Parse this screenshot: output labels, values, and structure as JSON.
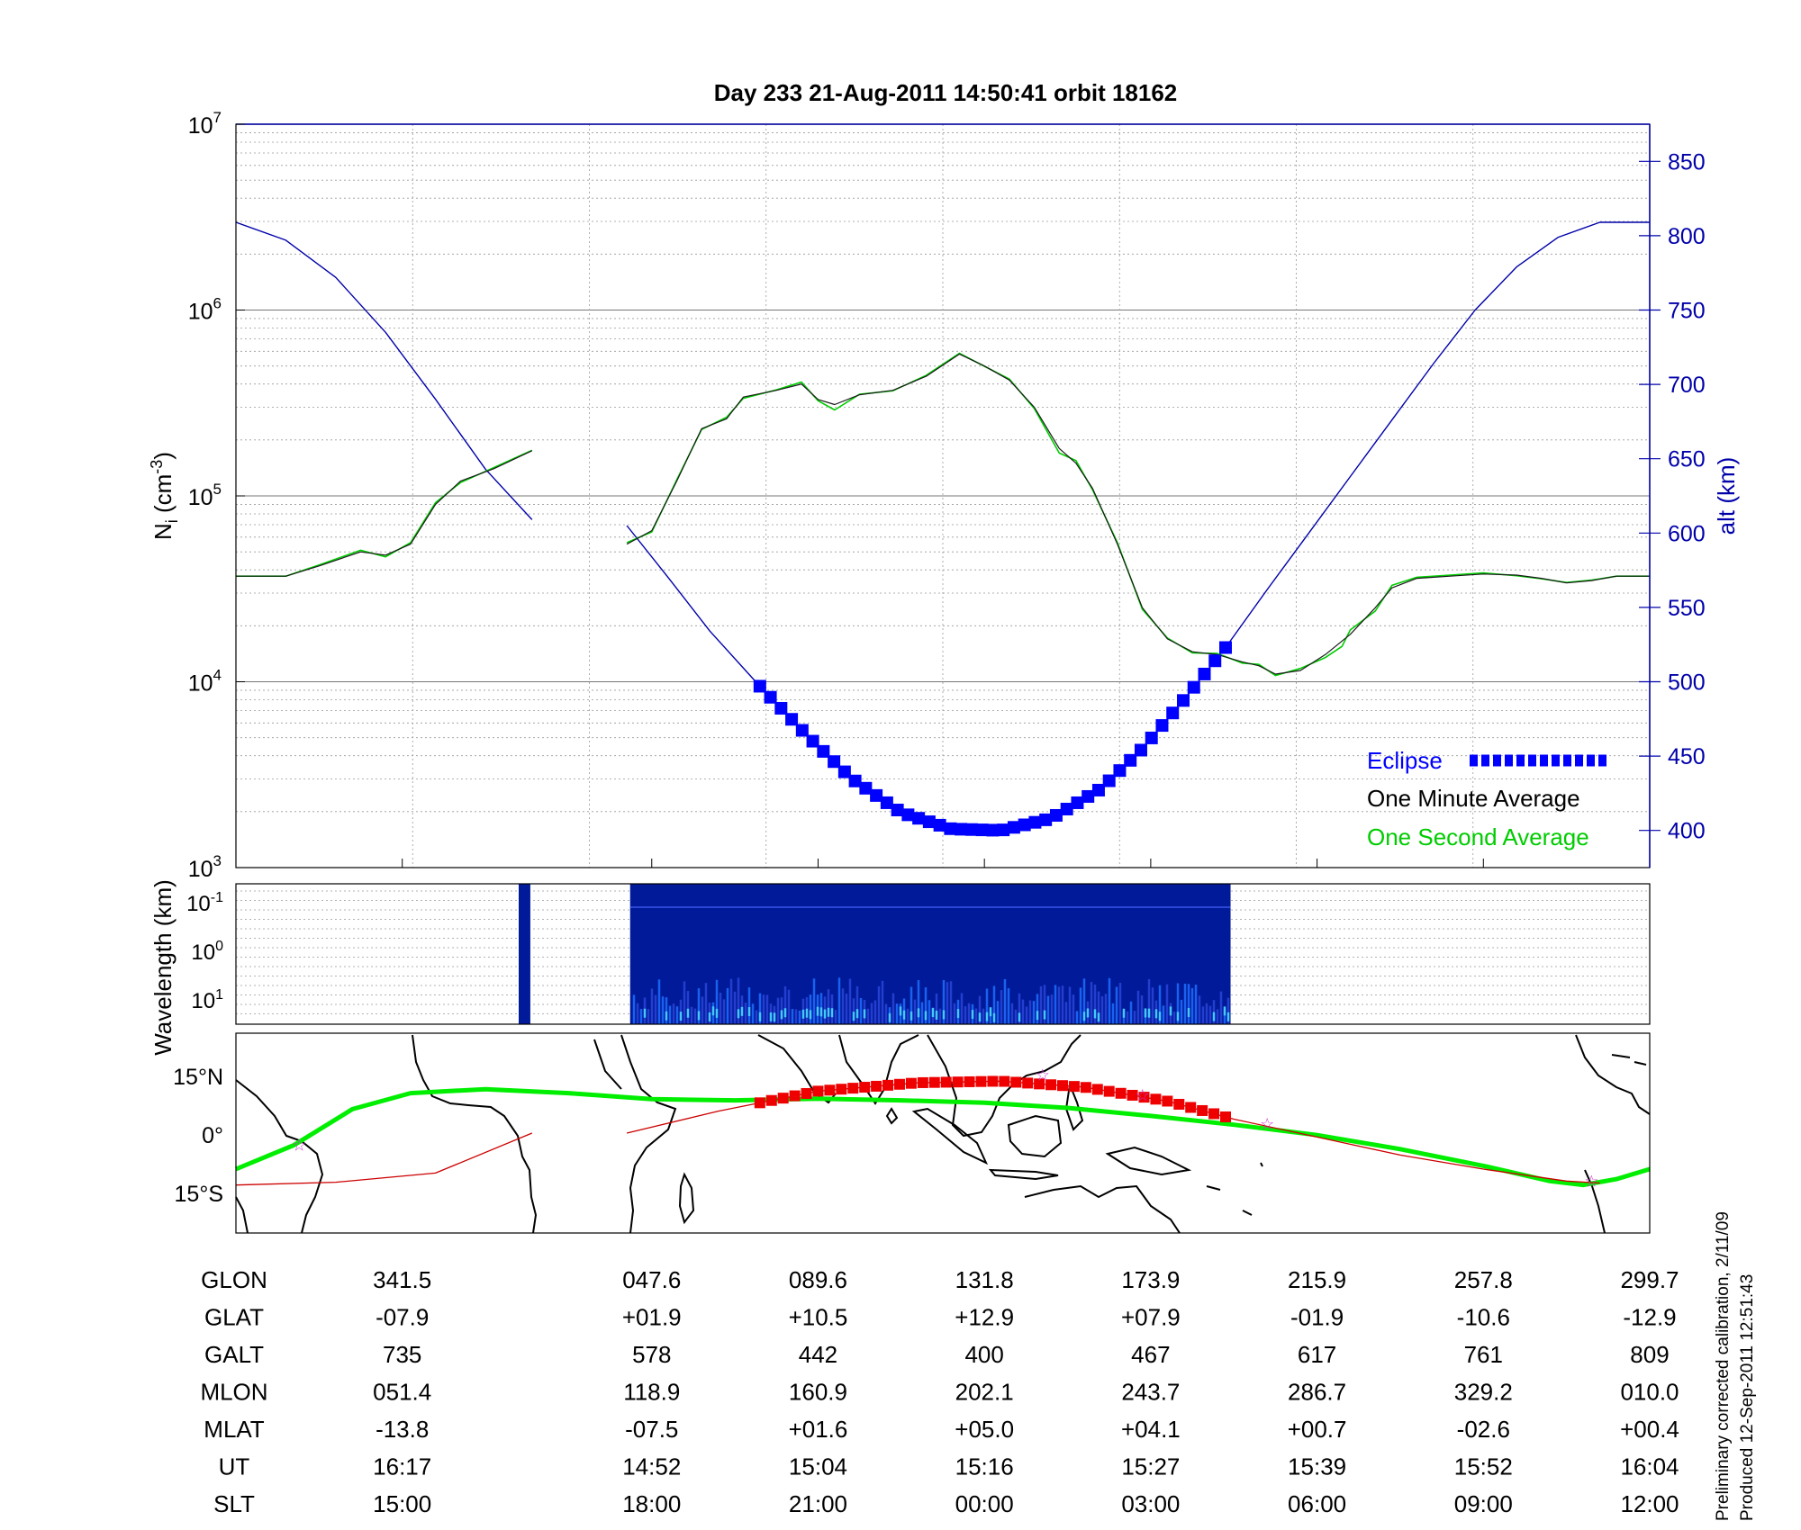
{
  "title": "Day 233  21-Aug-2011 14:50:41   orbit 18162",
  "colors": {
    "density_minute": "#1a1a1a",
    "density_second": "#00cc00",
    "altitude": "#0000aa",
    "eclipse": "#0000ff",
    "map_track": "#00ee00",
    "magnetic_track": "#cc0000",
    "map_eclipse": "#ee0000",
    "spectrogram_bg": "#001a99",
    "footnote": "#000000"
  },
  "chart_data": [
    {
      "type": "line",
      "panel": "density",
      "title": "Day 233  21-Aug-2011 14:50:41   orbit 18162",
      "ylabel": "N_i (cm^-3)",
      "ylabel_main": "N",
      "ylabel_sub": "i",
      "ylabel_rest": " (cm",
      "ylabel_sup": "-3",
      "ylabel_close": ")",
      "y_scale": "log",
      "ylim": [
        1000,
        10000000
      ],
      "y_ticks": [
        {
          "value": 1000,
          "base": "10",
          "exp": "3"
        },
        {
          "value": 10000,
          "base": "10",
          "exp": "4"
        },
        {
          "value": 100000,
          "base": "10",
          "exp": "5"
        },
        {
          "value": 1000000,
          "base": "10",
          "exp": "6"
        },
        {
          "value": 10000000,
          "base": "10",
          "exp": "7"
        }
      ],
      "y2label": "alt (km)",
      "y2lim": [
        375,
        875
      ],
      "y2_ticks": [
        "400",
        "450",
        "500",
        "550",
        "600",
        "650",
        "700",
        "750",
        "800",
        "850"
      ],
      "xlim": [
        0,
        8.5
      ],
      "x_unit": "track fraction",
      "grid": true,
      "legend_position": "bottom-right",
      "legend": [
        {
          "label": "Eclipse",
          "color": "#0000ff"
        },
        {
          "label": "One Minute Average",
          "color": "#000000"
        },
        {
          "label": "One Second Average",
          "color": "#00cc00"
        }
      ],
      "series": [
        {
          "name": "One Minute Average",
          "y_axis": "left",
          "segments": [
            [
              [
                0,
                37000
              ],
              [
                0.3,
                37000
              ],
              [
                0.5,
                42000
              ],
              [
                0.75,
                50000
              ],
              [
                0.9,
                48000
              ],
              [
                1.05,
                55000
              ],
              [
                1.2,
                90000
              ],
              [
                1.35,
                120000
              ],
              [
                1.55,
                140000
              ],
              [
                1.78,
                175000
              ]
            ],
            [
              [
                2.35,
                55000
              ],
              [
                2.5,
                65000
              ],
              [
                2.65,
                120000
              ],
              [
                2.8,
                230000
              ],
              [
                2.95,
                260000
              ],
              [
                3.05,
                340000
              ],
              [
                3.25,
                370000
              ],
              [
                3.4,
                400000
              ],
              [
                3.5,
                330000
              ],
              [
                3.6,
                310000
              ],
              [
                3.75,
                350000
              ],
              [
                3.95,
                370000
              ],
              [
                4.15,
                440000
              ],
              [
                4.35,
                580000
              ],
              [
                4.5,
                500000
              ],
              [
                4.65,
                420000
              ],
              [
                4.8,
                300000
              ],
              [
                4.95,
                180000
              ],
              [
                5.05,
                150000
              ],
              [
                5.15,
                110000
              ],
              [
                5.3,
                55000
              ],
              [
                5.45,
                25000
              ],
              [
                5.6,
                17000
              ],
              [
                5.75,
                14500
              ],
              [
                5.9,
                14000
              ],
              [
                6.05,
                12800
              ],
              [
                6.15,
                12200
              ],
              [
                6.25,
                11000
              ],
              [
                6.4,
                11500
              ],
              [
                6.55,
                14000
              ],
              [
                6.7,
                18000
              ],
              [
                6.85,
                25000
              ],
              [
                6.95,
                32000
              ],
              [
                7.1,
                36000
              ],
              [
                7.3,
                37000
              ],
              [
                7.5,
                38000
              ],
              [
                7.7,
                37500
              ],
              [
                7.85,
                36000
              ],
              [
                8.0,
                34000
              ],
              [
                8.15,
                35000
              ],
              [
                8.3,
                37000
              ],
              [
                8.5,
                37000
              ]
            ]
          ]
        },
        {
          "name": "One Second Average",
          "y_axis": "left",
          "segments": [
            [
              [
                0,
                37000
              ],
              [
                0.3,
                37000
              ],
              [
                0.5,
                42500
              ],
              [
                0.75,
                51000
              ],
              [
                0.9,
                47000
              ],
              [
                1.05,
                56000
              ],
              [
                1.2,
                92000
              ],
              [
                1.35,
                118000
              ],
              [
                1.55,
                142000
              ],
              [
                1.78,
                176000
              ]
            ],
            [
              [
                2.35,
                56000
              ],
              [
                2.5,
                64000
              ],
              [
                2.65,
                122000
              ],
              [
                2.8,
                228000
              ],
              [
                2.95,
                265000
              ],
              [
                3.05,
                335000
              ],
              [
                3.25,
                372000
              ],
              [
                3.4,
                410000
              ],
              [
                3.5,
                325000
              ],
              [
                3.6,
                290000
              ],
              [
                3.75,
                352000
              ],
              [
                3.95,
                368000
              ],
              [
                4.15,
                445000
              ],
              [
                4.35,
                585000
              ],
              [
                4.5,
                498000
              ],
              [
                4.65,
                425000
              ],
              [
                4.8,
                295000
              ],
              [
                4.95,
                170000
              ],
              [
                5.05,
                155000
              ],
              [
                5.15,
                108000
              ],
              [
                5.3,
                56000
              ],
              [
                5.45,
                24500
              ],
              [
                5.6,
                17200
              ],
              [
                5.75,
                14300
              ],
              [
                5.9,
                14200
              ],
              [
                6.05,
                12600
              ],
              [
                6.15,
                12400
              ],
              [
                6.25,
                10800
              ],
              [
                6.4,
                11800
              ],
              [
                6.55,
                13500
              ],
              [
                6.65,
                15500
              ],
              [
                6.7,
                19000
              ],
              [
                6.85,
                24000
              ],
              [
                6.95,
                33000
              ],
              [
                7.1,
                36500
              ],
              [
                7.3,
                37500
              ],
              [
                7.5,
                38500
              ],
              [
                7.7,
                37200
              ],
              [
                7.85,
                35800
              ],
              [
                8.0,
                34200
              ],
              [
                8.15,
                35200
              ],
              [
                8.3,
                37000
              ],
              [
                8.5,
                37000
              ]
            ]
          ]
        },
        {
          "name": "alt (km)",
          "y_axis": "right",
          "segments": [
            [
              [
                0,
                809
              ],
              [
                0.3,
                797
              ],
              [
                0.6,
                772
              ],
              [
                0.9,
                735
              ],
              [
                1.2,
                690
              ],
              [
                1.5,
                643
              ],
              [
                1.78,
                609
              ]
            ],
            [
              [
                2.35,
                605
              ],
              [
                2.6,
                570
              ],
              [
                2.85,
                534
              ],
              [
                3.15,
                497
              ],
              [
                3.45,
                462
              ],
              [
                3.7,
                435
              ],
              [
                4.0,
                412
              ],
              [
                4.3,
                401
              ],
              [
                4.6,
                400
              ],
              [
                4.9,
                408
              ],
              [
                5.2,
                428
              ],
              [
                5.45,
                455
              ],
              [
                5.7,
                488
              ],
              [
                5.95,
                523
              ],
              [
                6.2,
                562
              ],
              [
                6.45,
                600
              ],
              [
                6.7,
                638
              ],
              [
                6.95,
                676
              ],
              [
                7.2,
                714
              ],
              [
                7.45,
                750
              ],
              [
                7.7,
                779
              ],
              [
                7.95,
                799
              ],
              [
                8.2,
                809
              ],
              [
                8.5,
                809
              ]
            ]
          ]
        }
      ],
      "eclipse": {
        "x_start": 3.15,
        "x_end": 5.95
      }
    },
    {
      "type": "heatmap",
      "panel": "spectrogram",
      "ylabel": "Wavelength (km)",
      "y_ticks": [
        {
          "base": "10",
          "exp": "-1"
        },
        {
          "base": "10",
          "exp": "0"
        },
        {
          "base": "10",
          "exp": "1"
        }
      ],
      "xlim": [
        0,
        8.5
      ],
      "data_spans": [
        [
          1.7,
          1.77
        ],
        [
          2.37,
          5.98
        ]
      ]
    },
    {
      "type": "line",
      "panel": "map",
      "y_ticks": [
        "15°N",
        "0°",
        "15°S"
      ],
      "xlim": [
        0,
        8.5
      ],
      "ylim": [
        -25,
        25
      ],
      "series": [
        {
          "name": "geographic",
          "points": [
            [
              0,
              -9
            ],
            [
              0.35,
              -3
            ],
            [
              0.7,
              6
            ],
            [
              1.05,
              10
            ],
            [
              1.5,
              11
            ],
            [
              2.0,
              10
            ],
            [
              2.5,
              8.5
            ],
            [
              3.0,
              8.2
            ],
            [
              3.5,
              8.6
            ],
            [
              4.0,
              8.2
            ],
            [
              4.5,
              7.6
            ],
            [
              5.0,
              6.3
            ],
            [
              5.5,
              4.3
            ],
            [
              6.0,
              2.1
            ],
            [
              6.5,
              -0.5
            ],
            [
              7.0,
              -4
            ],
            [
              7.5,
              -8.2
            ],
            [
              7.9,
              -12
            ],
            [
              8.1,
              -13
            ],
            [
              8.3,
              -11.5
            ],
            [
              8.5,
              -9
            ]
          ]
        },
        {
          "name": "magnetic",
          "points": [
            [
              0,
              -13
            ],
            [
              0.6,
              -12.3
            ],
            [
              1.2,
              -10
            ],
            [
              1.78,
              0
            ]
          ]
        },
        {
          "name": "magnetic",
          "points": [
            [
              2.35,
              0
            ],
            [
              2.9,
              5.5
            ],
            [
              3.5,
              10.5
            ],
            [
              4.1,
              12.6
            ],
            [
              4.6,
              13
            ],
            [
              5.1,
              11.5
            ],
            [
              5.6,
              8
            ],
            [
              6.0,
              3.5
            ],
            [
              6.5,
              -1
            ],
            [
              7.0,
              -5.5
            ],
            [
              7.5,
              -9
            ],
            [
              8.0,
              -12
            ],
            [
              8.2,
              -12.5
            ]
          ]
        }
      ],
      "eclipse": {
        "x_start": 3.15,
        "x_end": 5.95
      },
      "stars": [
        [
          0.38,
          -3
        ],
        [
          4.85,
          14.5
        ],
        [
          5.45,
          9.5
        ],
        [
          6.2,
          2.3
        ],
        [
          8.15,
          -12
        ]
      ]
    }
  ],
  "table": {
    "rows": [
      {
        "label": "GLON",
        "values": [
          "341.5",
          "047.6",
          "089.6",
          "131.8",
          "173.9",
          "215.9",
          "257.8",
          "299.7"
        ]
      },
      {
        "label": "GLAT",
        "values": [
          "-07.9",
          "+01.9",
          "+10.5",
          "+12.9",
          "+07.9",
          "-01.9",
          "-10.6",
          "-12.9"
        ]
      },
      {
        "label": "GALT",
        "values": [
          "735",
          "578",
          "442",
          "400",
          "467",
          "617",
          "761",
          "809"
        ]
      },
      {
        "label": "MLON",
        "values": [
          "051.4",
          "118.9",
          "160.9",
          "202.1",
          "243.7",
          "286.7",
          "329.2",
          "010.0"
        ]
      },
      {
        "label": "MLAT",
        "values": [
          "-13.8",
          "-07.5",
          "+01.6",
          "+05.0",
          "+04.1",
          "+00.7",
          "-02.6",
          "+00.4"
        ]
      },
      {
        "label": "UT",
        "values": [
          "16:17",
          "14:52",
          "15:04",
          "15:16",
          "15:27",
          "15:39",
          "15:52",
          "16:04"
        ]
      },
      {
        "label": "SLT",
        "values": [
          "15:00",
          "18:00",
          "21:00",
          "00:00",
          "03:00",
          "06:00",
          "09:00",
          "12:00"
        ]
      }
    ],
    "column_x": [
      1,
      2.5,
      3.5,
      4.5,
      5.5,
      6.5,
      7.5,
      8.5
    ]
  },
  "footnote": {
    "line1": "Preliminary corrected calibration, 2/11/09",
    "line2": "Produced 12-Sep-2011 12:51:43"
  }
}
